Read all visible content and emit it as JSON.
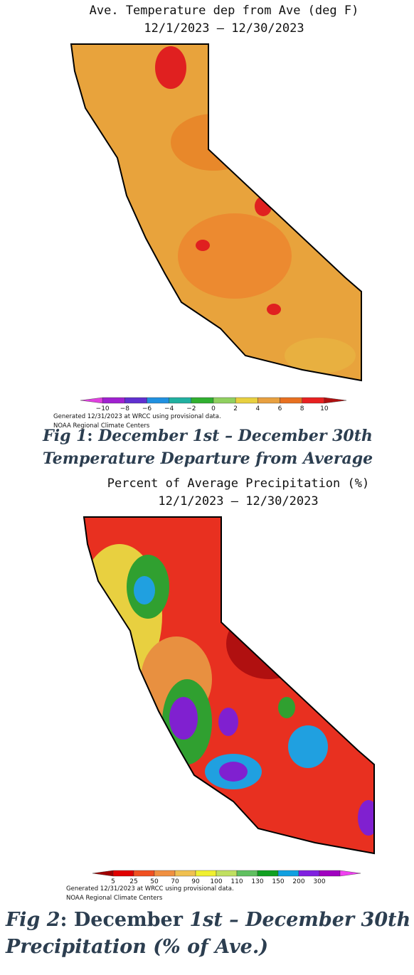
{
  "figures": [
    {
      "title": [
        "Ave. Temperature dep from Ave (deg F)",
        "12/1/2023 – 12/30/2023"
      ],
      "legend": {
        "labels": [
          "−10",
          "−8",
          "−6",
          "−4",
          "−2",
          "0",
          "2",
          "4",
          "6",
          "8",
          "10"
        ],
        "colors": [
          "#e040e0",
          "#a020d0",
          "#6030d0",
          "#2090e0",
          "#20b0a0",
          "#30b030",
          "#90d060",
          "#e8d040",
          "#e8a040",
          "#e87020",
          "#e82020",
          "#b01010"
        ]
      },
      "credits": [
        "Generated 12/31/2023 at WRCC using provisional data.",
        "NOAA Regional Climate Centers"
      ],
      "caption": [
        [
          "Fig 1",
          ": ",
          "December 1st – December 30th"
        ],
        [
          "Temperature Departure from Average"
        ]
      ]
    },
    {
      "title": [
        "Percent of Average Precipitation (%)",
        "12/1/2023 – 12/30/2023"
      ],
      "legend": {
        "labels": [
          "5",
          "25",
          "50",
          "70",
          "90",
          "100",
          "110",
          "130",
          "150",
          "200",
          "300"
        ],
        "colors": [
          "#a00000",
          "#e00000",
          "#f05020",
          "#f09040",
          "#f0c050",
          "#f0f030",
          "#c0e060",
          "#60c060",
          "#10a020",
          "#10a0e0",
          "#8020e0",
          "#a000c0",
          "#f040f0"
        ]
      },
      "credits": [
        "Generated 12/31/2023 at WRCC using provisional data.",
        "NOAA Regional Climate Centers"
      ],
      "caption": [
        [
          "Fig 2",
          ": December ",
          "1st – December 30th"
        ],
        [
          "Precipitation (% of Ave.)"
        ]
      ]
    }
  ]
}
